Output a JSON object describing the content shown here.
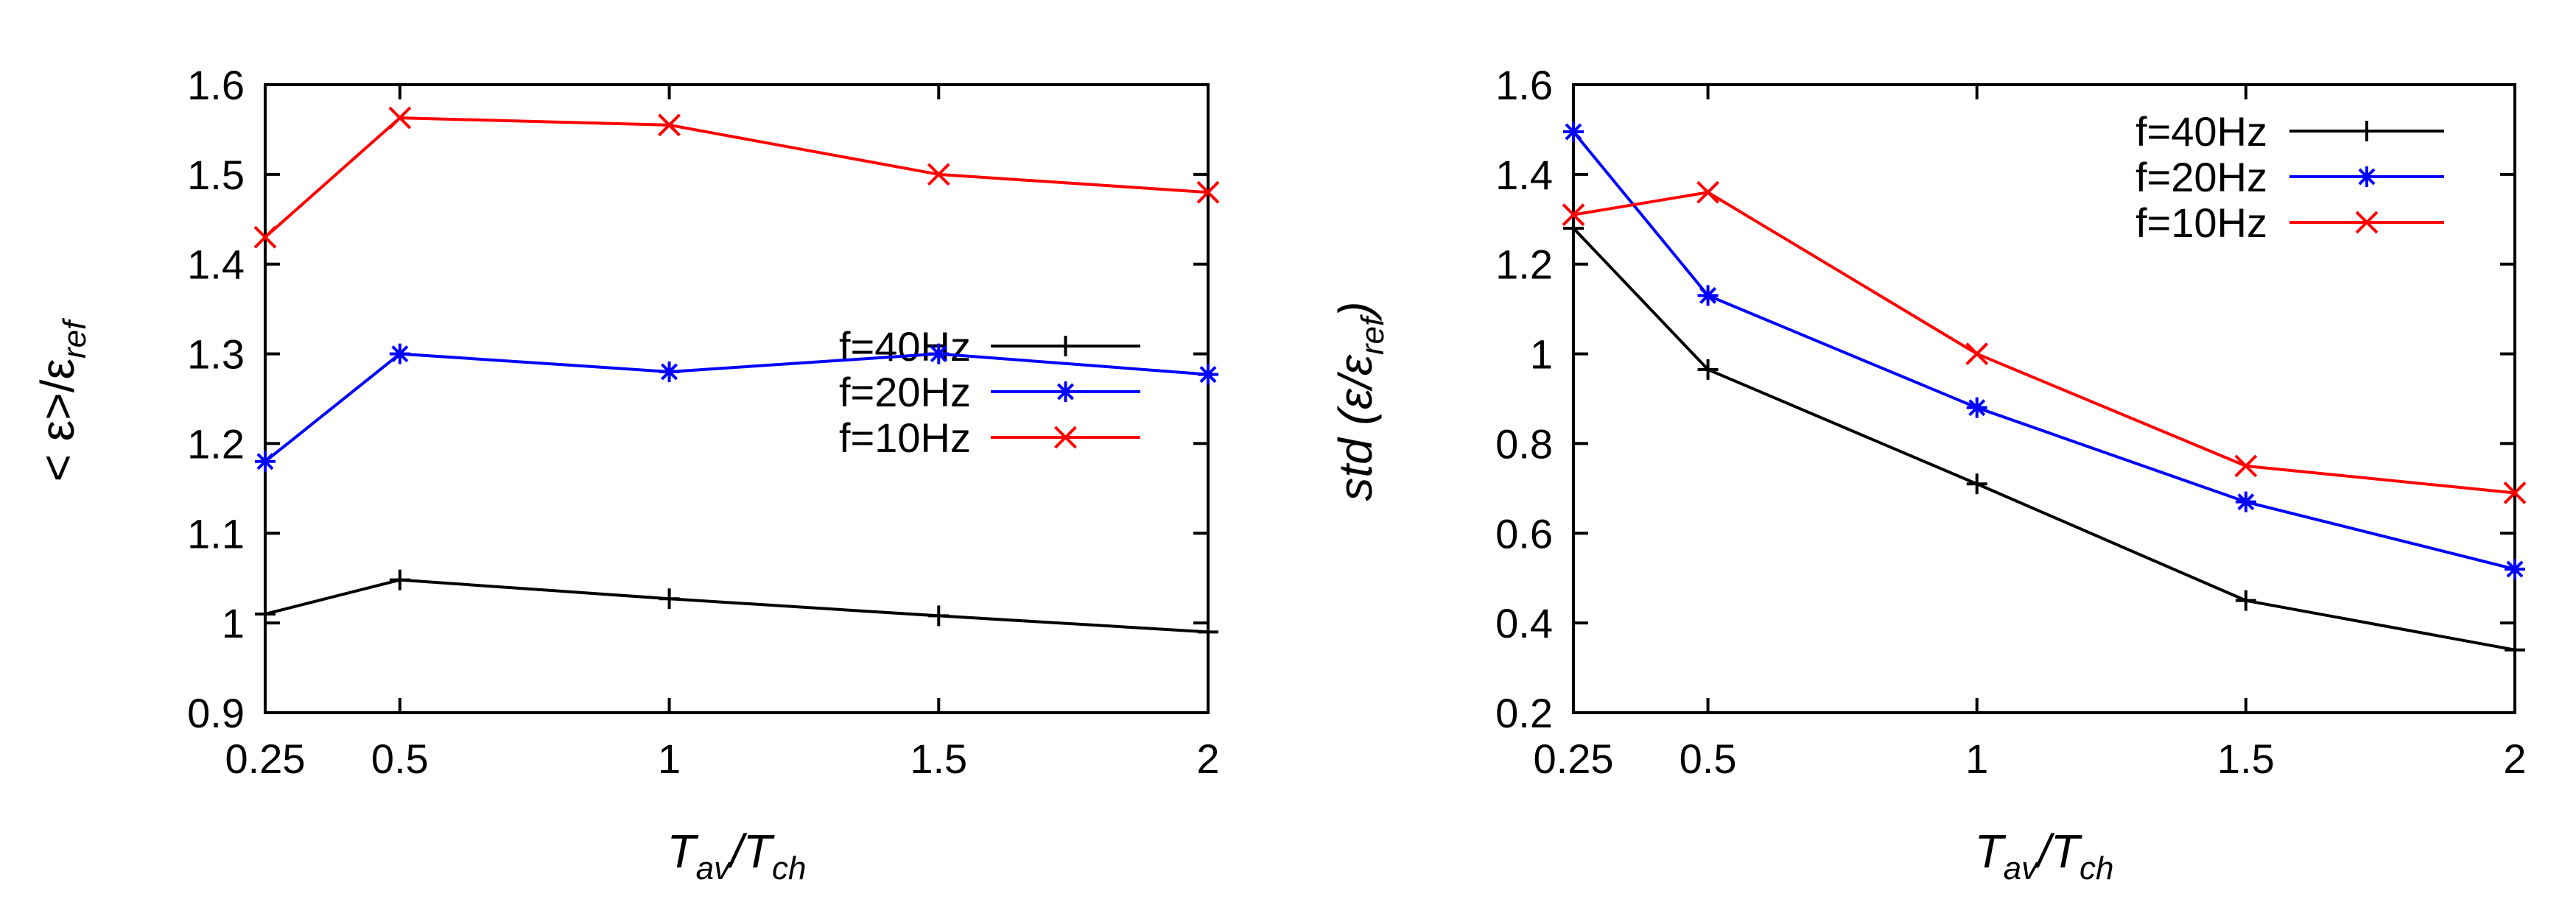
{
  "chart_data": [
    {
      "type": "line",
      "x": [
        0.25,
        0.5,
        1,
        1.5,
        2
      ],
      "xticks": [
        "0.25",
        "0.5",
        "1",
        "1.5",
        "2"
      ],
      "xlim": [
        0.25,
        2
      ],
      "ylim": [
        0.9,
        1.6
      ],
      "yticks": [
        "0.9",
        "1",
        "1.1",
        "1.2",
        "1.3",
        "1.4",
        "1.5",
        "1.6"
      ],
      "xlabel": {
        "main1": "T",
        "sub1": "av",
        "mid": "/T",
        "sub2": "ch"
      },
      "ylabel": {
        "main": "< ε>/ε",
        "sub": "ref"
      },
      "legend_position": "center-right",
      "series": [
        {
          "name": "f=40Hz",
          "color": "#000000",
          "marker": "plus",
          "values": [
            1.01,
            1.048,
            1.027,
            1.008,
            0.99
          ]
        },
        {
          "name": "f=20Hz",
          "color": "#0000ff",
          "marker": "star",
          "values": [
            1.18,
            1.3,
            1.28,
            1.3,
            1.277
          ]
        },
        {
          "name": "f=10Hz",
          "color": "#ff0000",
          "marker": "cross",
          "values": [
            1.43,
            1.563,
            1.555,
            1.5,
            1.48
          ]
        }
      ]
    },
    {
      "type": "line",
      "x": [
        0.25,
        0.5,
        1,
        1.5,
        2
      ],
      "xticks": [
        "0.25",
        "0.5",
        "1",
        "1.5",
        "2"
      ],
      "xlim": [
        0.25,
        2
      ],
      "ylim": [
        0.2,
        1.6
      ],
      "yticks": [
        "0.2",
        "0.4",
        "0.6",
        "0.8",
        "1",
        "1.2",
        "1.4",
        "1.6"
      ],
      "xlabel": {
        "main1": "T",
        "sub1": "av",
        "mid": "/T",
        "sub2": "ch"
      },
      "ylabel": {
        "main": "std (ε/ε",
        "sub": "ref",
        "close": ")"
      },
      "legend_position": "top-right",
      "series": [
        {
          "name": "f=40Hz",
          "color": "#000000",
          "marker": "plus",
          "values": [
            1.28,
            0.965,
            0.71,
            0.45,
            0.34
          ]
        },
        {
          "name": "f=20Hz",
          "color": "#0000ff",
          "marker": "star",
          "values": [
            1.495,
            1.13,
            0.88,
            0.67,
            0.52
          ]
        },
        {
          "name": "f=10Hz",
          "color": "#ff0000",
          "marker": "cross",
          "values": [
            1.31,
            1.36,
            1.0,
            0.75,
            0.69
          ]
        }
      ]
    }
  ]
}
